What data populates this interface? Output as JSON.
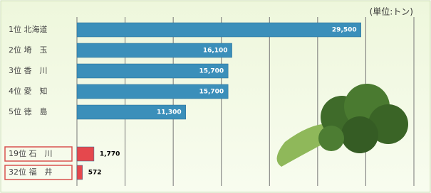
{
  "chart_data": {
    "type": "hbar",
    "unit_label": "(単位:トン)",
    "categories": [
      "1位 北海道",
      "2位 埼　玉",
      "3位 香　川",
      "4位 愛　知",
      "5位 徳　島",
      "19位 石　川",
      "32位 福　井"
    ],
    "values": [
      29500,
      16100,
      15700,
      15700,
      11300,
      1770,
      572
    ],
    "value_labels": [
      "29,500",
      "16,100",
      "15,700",
      "15,700",
      "11,300",
      "1,770",
      "572"
    ],
    "colors": [
      "#3b8fba",
      "#3b8fba",
      "#3b8fba",
      "#3b8fba",
      "#3b8fba",
      "#e5484d",
      "#e5484d"
    ],
    "highlight": [
      false,
      false,
      false,
      false,
      false,
      true,
      true
    ],
    "xlim": [
      0,
      35000
    ],
    "xticks": [
      0,
      5000,
      10000,
      15000,
      20000,
      25000,
      30000,
      35000
    ],
    "grid": true
  }
}
